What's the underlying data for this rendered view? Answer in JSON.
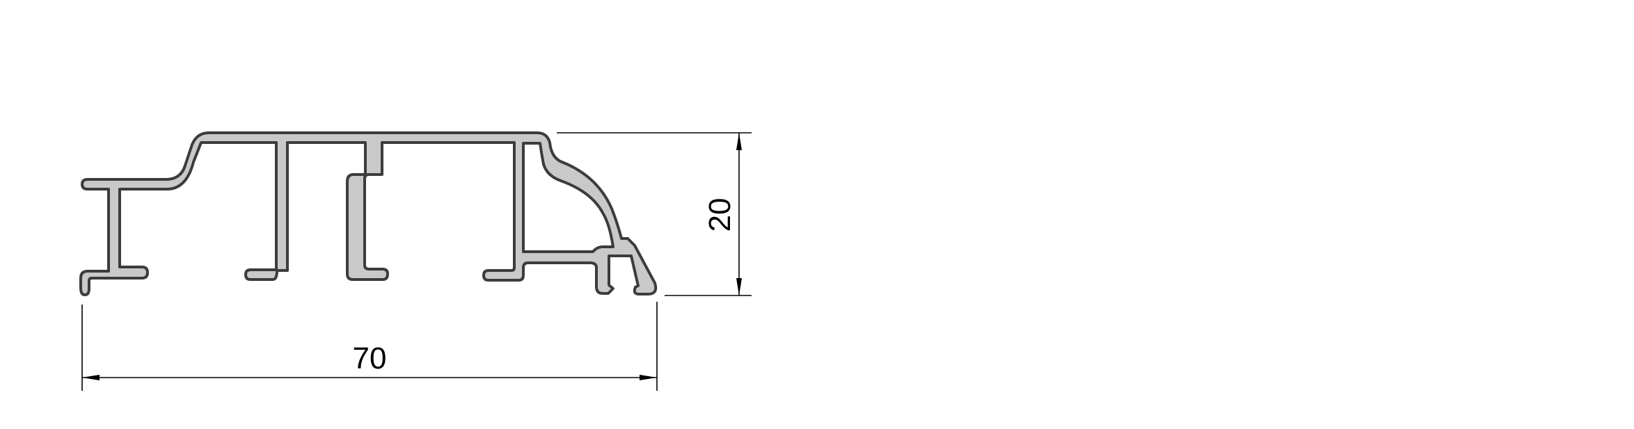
{
  "drawing": {
    "type": "aluminium extrusion profile cross-section",
    "colors": {
      "profile_fill": "#c9c9c9",
      "profile_outline": "#3c3c3c",
      "dimension_lines": "#000000",
      "background": "#ffffff"
    },
    "dimensions": {
      "width": "70",
      "height": "20"
    }
  }
}
